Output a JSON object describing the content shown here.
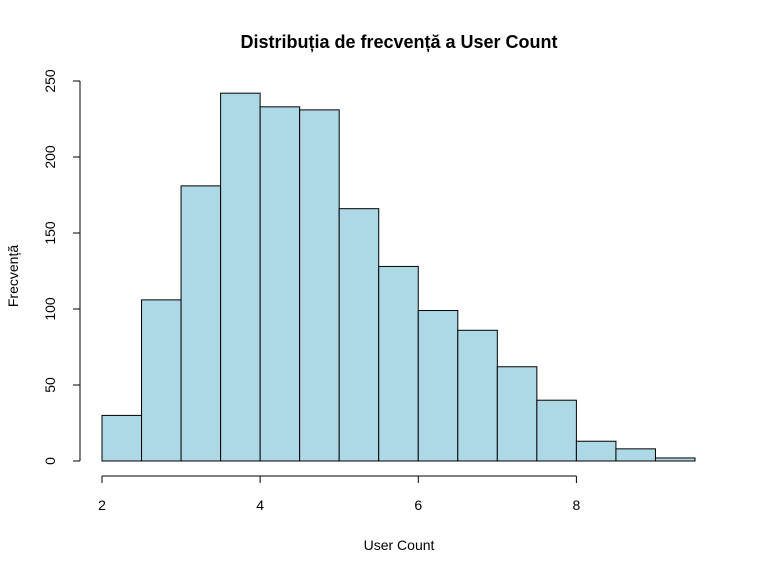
{
  "chart_data": {
    "type": "bar",
    "title": "Distribuția de frecvență a User Count",
    "xlabel": "User Count",
    "ylabel": "Frecvență",
    "bin_edges": [
      2,
      2.5,
      3,
      3.5,
      4,
      4.5,
      5,
      5.5,
      6,
      6.5,
      7,
      7.5,
      8,
      8.5,
      9,
      9.5
    ],
    "values": [
      30,
      106,
      181,
      242,
      233,
      231,
      166,
      128,
      99,
      86,
      62,
      40,
      13,
      8,
      2
    ],
    "xlim": [
      2,
      9.5
    ],
    "ylim": [
      0,
      250
    ],
    "x_ticks": [
      2,
      4,
      6,
      8
    ],
    "y_ticks": [
      0,
      50,
      100,
      150,
      200,
      250
    ],
    "bar_color": "#ADD8E6",
    "edge_color": "#000000",
    "grid": false,
    "legend": "none"
  }
}
